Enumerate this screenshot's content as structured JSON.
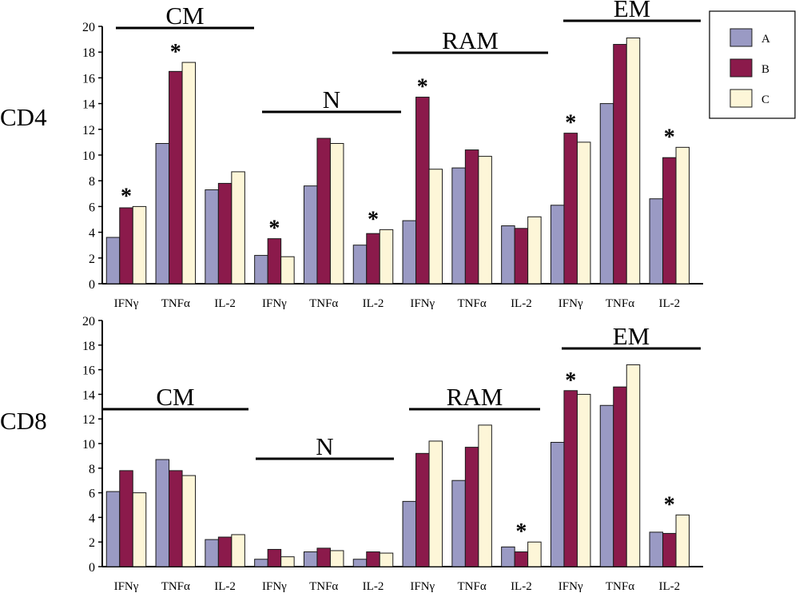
{
  "legend": {
    "items": [
      {
        "label": "A",
        "color": "#9a9ac4"
      },
      {
        "label": "B",
        "color": "#8b1a4b"
      },
      {
        "label": "C",
        "color": "#fdf6d8"
      }
    ]
  },
  "chart_data": [
    {
      "type": "bar",
      "panel_label": "CD4",
      "ylim": [
        0,
        20
      ],
      "yticks": [
        0,
        2,
        4,
        6,
        8,
        10,
        12,
        14,
        16,
        18,
        20
      ],
      "categories": [
        "IFNγ",
        "TNFα",
        "IL-2",
        "IFNγ",
        "TNFα",
        "IL-2",
        "IFNγ",
        "TNFα",
        "IL-2",
        "IFNγ",
        "TNFα",
        "IL-2"
      ],
      "groups": [
        {
          "label": "CM",
          "start": 0,
          "end": 2
        },
        {
          "label": "N",
          "start": 3,
          "end": 5
        },
        {
          "label": "RAM",
          "start": 6,
          "end": 8
        },
        {
          "label": "EM",
          "start": 9,
          "end": 11
        }
      ],
      "series": [
        {
          "name": "A",
          "values": [
            3.6,
            10.9,
            7.3,
            2.2,
            7.6,
            3.0,
            4.9,
            9.0,
            4.5,
            6.1,
            14.0,
            6.6
          ]
        },
        {
          "name": "B",
          "values": [
            5.9,
            16.5,
            7.8,
            3.5,
            11.3,
            3.9,
            14.5,
            10.4,
            4.3,
            11.7,
            18.6,
            9.8
          ]
        },
        {
          "name": "C",
          "values": [
            6.0,
            17.2,
            8.7,
            2.1,
            10.9,
            4.2,
            8.9,
            9.9,
            5.2,
            11.0,
            19.1,
            10.6
          ]
        }
      ],
      "annotations": [
        {
          "text": "*",
          "category_index": 0
        },
        {
          "text": "*",
          "category_index": 1
        },
        {
          "text": "*",
          "category_index": 3
        },
        {
          "text": "*",
          "category_index": 5
        },
        {
          "text": "*",
          "category_index": 6
        },
        {
          "text": "*",
          "category_index": 9
        },
        {
          "text": "*",
          "category_index": 11
        }
      ]
    },
    {
      "type": "bar",
      "panel_label": "CD8",
      "ylim": [
        0,
        20
      ],
      "yticks": [
        0,
        2,
        4,
        6,
        8,
        10,
        12,
        14,
        16,
        18,
        20
      ],
      "categories": [
        "IFNγ",
        "TNFα",
        "IL-2",
        "IFNγ",
        "TNFα",
        "IL-2",
        "IFNγ",
        "TNFα",
        "IL-2",
        "IFNγ",
        "TNFα",
        "IL-2"
      ],
      "groups": [
        {
          "label": "CM",
          "start": 0,
          "end": 2
        },
        {
          "label": "N",
          "start": 3,
          "end": 5
        },
        {
          "label": "RAM",
          "start": 6,
          "end": 8
        },
        {
          "label": "EM",
          "start": 9,
          "end": 11
        }
      ],
      "series": [
        {
          "name": "A",
          "values": [
            6.1,
            8.7,
            2.2,
            0.6,
            1.2,
            0.6,
            5.3,
            7.0,
            1.6,
            10.1,
            13.1,
            2.8
          ]
        },
        {
          "name": "B",
          "values": [
            7.8,
            7.8,
            2.4,
            1.4,
            1.5,
            1.2,
            9.2,
            9.7,
            1.2,
            14.3,
            14.6,
            2.7
          ]
        },
        {
          "name": "C",
          "values": [
            6.0,
            7.4,
            2.6,
            0.8,
            1.3,
            1.1,
            10.2,
            11.5,
            2.0,
            14.0,
            16.4,
            4.2
          ]
        }
      ],
      "annotations": [
        {
          "text": "*",
          "category_index": 8
        },
        {
          "text": "*",
          "category_index": 9
        },
        {
          "text": "*",
          "category_index": 11
        }
      ]
    }
  ]
}
